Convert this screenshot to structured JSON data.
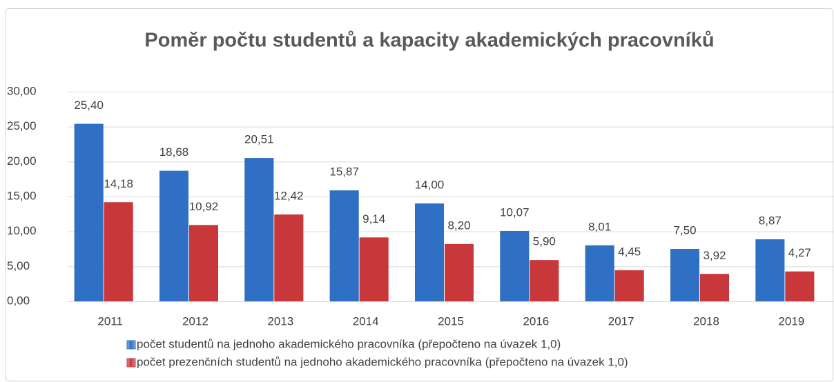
{
  "chart_data": {
    "type": "bar",
    "title": "Poměr počtu studentů a kapacity akademických pracovníků",
    "categories": [
      "2011",
      "2012",
      "2013",
      "2014",
      "2015",
      "2016",
      "2017",
      "2018",
      "2019"
    ],
    "series": [
      {
        "name": "počet studentů na jednoho akademického pracovníka (přepočteno na úvazek 1,0)",
        "color": "#2f6fc4",
        "values": [
          25.4,
          18.68,
          20.51,
          15.87,
          14.0,
          10.07,
          8.01,
          7.5,
          8.87
        ],
        "value_labels": [
          "25,40",
          "18,68",
          "20,51",
          "15,87",
          "14,00",
          "10,07",
          "8,01",
          "7,50",
          "8,87"
        ]
      },
      {
        "name": "počet prezenčních studentů na jednoho akademického pracovníka (přepočteno na úvazek 1,0)",
        "color": "#c8383a",
        "values": [
          14.18,
          10.92,
          12.42,
          9.14,
          8.2,
          5.9,
          4.45,
          3.92,
          4.27
        ],
        "value_labels": [
          "14,18",
          "10,92",
          "12,42",
          "9,14",
          "8,20",
          "5,90",
          "4,45",
          "3,92",
          "4,27"
        ]
      }
    ],
    "ylim": [
      0,
      30
    ],
    "yticks": [
      {
        "value": 0,
        "label": "0,00"
      },
      {
        "value": 5,
        "label": "5,00"
      },
      {
        "value": 10,
        "label": "10,00"
      },
      {
        "value": 15,
        "label": "15,00"
      },
      {
        "value": 20,
        "label": "20,00"
      },
      {
        "value": 25,
        "label": "25,00"
      },
      {
        "value": 30,
        "label": "30,00"
      }
    ],
    "grid": true,
    "legend": "bottom"
  }
}
